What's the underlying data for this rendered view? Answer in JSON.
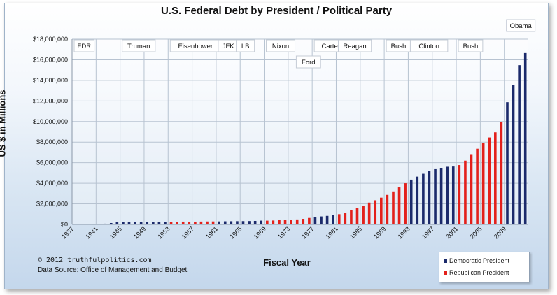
{
  "chart_data": {
    "type": "bar",
    "title": "U.S. Federal Debt by President / Political Party",
    "ylabel": "US $ in Millions",
    "xlabel": "Fiscal Year",
    "ylim": [
      0,
      18000000
    ],
    "y_tick_labels": [
      "$0",
      "$2,000,000",
      "$4,000,000",
      "$6,000,000",
      "$8,000,000",
      "$10,000,000",
      "$12,000,000",
      "$14,000,000",
      "$16,000,000",
      "$18,000,000"
    ],
    "x_tick_labels": [
      "1937",
      "1941",
      "1945",
      "1949",
      "1953",
      "1957",
      "1961",
      "1965",
      "1969",
      "1973",
      "1977",
      "1981",
      "1985",
      "1989",
      "1993",
      "1997",
      "2001",
      "2005",
      "2009"
    ],
    "grid": true,
    "legend_position": "bottom-right",
    "colors": {
      "democratic": "#1b2a6b",
      "republican": "#e3201b"
    },
    "series": [
      {
        "name": "Democratic President",
        "color": "#1b2a6b"
      },
      {
        "name": "Republican President",
        "color": "#e3201b"
      }
    ],
    "years": [
      1937,
      1938,
      1939,
      1940,
      1941,
      1942,
      1943,
      1944,
      1945,
      1946,
      1947,
      1948,
      1949,
      1950,
      1951,
      1952,
      1953,
      1954,
      1955,
      1956,
      1957,
      1958,
      1959,
      1960,
      1961,
      1962,
      1963,
      1964,
      1965,
      1966,
      1967,
      1968,
      1969,
      1970,
      1971,
      1972,
      1973,
      1974,
      1975,
      1976,
      1977,
      1978,
      1979,
      1980,
      1981,
      1982,
      1983,
      1984,
      1985,
      1986,
      1987,
      1988,
      1989,
      1990,
      1991,
      1992,
      1993,
      1994,
      1995,
      1996,
      1997,
      1998,
      1999,
      2000,
      2001,
      2002,
      2003,
      2004,
      2005,
      2006,
      2007,
      2008,
      2009,
      2010,
      2011,
      2012
    ],
    "party": [
      "D",
      "D",
      "D",
      "D",
      "D",
      "D",
      "D",
      "D",
      "D",
      "D",
      "D",
      "D",
      "D",
      "D",
      "D",
      "D",
      "R",
      "R",
      "R",
      "R",
      "R",
      "R",
      "R",
      "R",
      "D",
      "D",
      "D",
      "D",
      "D",
      "D",
      "D",
      "D",
      "R",
      "R",
      "R",
      "R",
      "R",
      "R",
      "R",
      "R",
      "D",
      "D",
      "D",
      "D",
      "R",
      "R",
      "R",
      "R",
      "R",
      "R",
      "R",
      "R",
      "R",
      "R",
      "R",
      "R",
      "D",
      "D",
      "D",
      "D",
      "D",
      "D",
      "D",
      "D",
      "R",
      "R",
      "R",
      "R",
      "R",
      "R",
      "R",
      "R",
      "D",
      "D",
      "D",
      "D"
    ],
    "values": [
      36400,
      37200,
      40400,
      43000,
      49000,
      72400,
      136700,
      204100,
      260100,
      271000,
      257100,
      252000,
      252600,
      256900,
      255300,
      259100,
      266000,
      270800,
      274400,
      272700,
      272300,
      279700,
      287500,
      290500,
      292600,
      302900,
      310300,
      316100,
      322300,
      328500,
      340400,
      368700,
      365800,
      380900,
      408200,
      435900,
      466300,
      483900,
      541900,
      629000,
      706400,
      776600,
      829500,
      909000,
      994800,
      1137300,
      1371700,
      1564600,
      1817400,
      2120500,
      2346000,
      2601100,
      2867800,
      3206300,
      3598200,
      4001800,
      4351000,
      4643300,
      4920600,
      5181500,
      5369200,
      5478200,
      5605500,
      5628700,
      5769900,
      6198400,
      6760000,
      7354700,
      7905300,
      8451400,
      8950700,
      9986100,
      11875900,
      13528800,
      15476200,
      16650000
    ],
    "presidents": [
      {
        "name": "FDR",
        "year": 1937
      },
      {
        "name": "Truman",
        "year": 1945
      },
      {
        "name": "Eisenhower",
        "year": 1953
      },
      {
        "name": "JFK",
        "year": 1961
      },
      {
        "name": "LB",
        "year": 1964
      },
      {
        "name": "Nixon",
        "year": 1969
      },
      {
        "name": "Ford",
        "year": 1974
      },
      {
        "name": "Carter",
        "year": 1977
      },
      {
        "name": "Reagan",
        "year": 1981
      },
      {
        "name": "Bush",
        "year": 1989
      },
      {
        "name": "Clinton",
        "year": 1993
      },
      {
        "name": "Bush",
        "year": 2001
      },
      {
        "name": "Obama",
        "year": 2009
      }
    ]
  },
  "copyright": "© 2012  truthfulpolitics.com",
  "source": "Data Source:  Office of Management and Budget"
}
